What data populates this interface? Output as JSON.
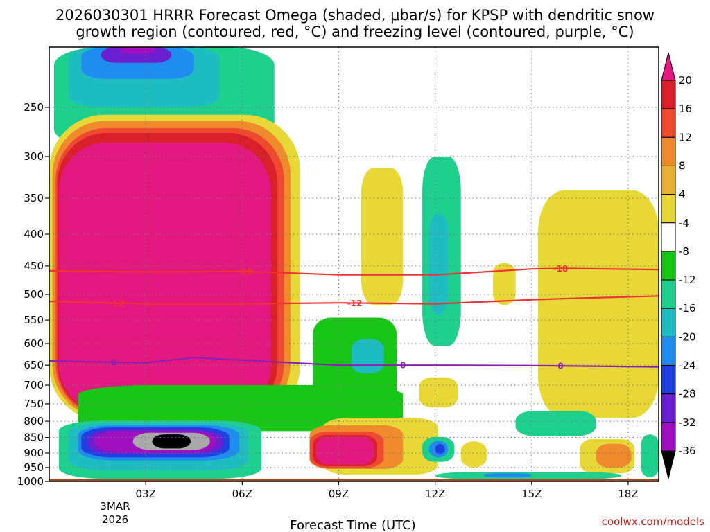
{
  "chart_data": {
    "type": "heatmap",
    "title_line1": "2026030301 HRRR Forecast Omega (shaded, μbar/s) for KPSP with dendritic snow",
    "title_line2": "growth region (contoured, red, °C) and freezing level (contoured, purple, °C)",
    "xlabel": "Forecast Time (UTC)",
    "credit": "coolwx.com/models",
    "date_label": [
      "3MAR",
      "2026"
    ],
    "x_range_hours": [
      0.0,
      18.95
    ],
    "x_ticks": [
      {
        "hour": 3,
        "label": "03Z"
      },
      {
        "hour": 6,
        "label": "06Z"
      },
      {
        "hour": 9,
        "label": "09Z"
      },
      {
        "hour": 12,
        "label": "12Z"
      },
      {
        "hour": 15,
        "label": "15Z"
      },
      {
        "hour": 18,
        "label": "18Z"
      }
    ],
    "y_range_hpa": [
      200,
      1000
    ],
    "y_ticks": [
      {
        "hpa": 250,
        "label": "250"
      },
      {
        "hpa": 300,
        "label": "300"
      },
      {
        "hpa": 350,
        "label": "350"
      },
      {
        "hpa": 400,
        "label": "400"
      },
      {
        "hpa": 450,
        "label": "450"
      },
      {
        "hpa": 500,
        "label": "500"
      },
      {
        "hpa": 550,
        "label": "550"
      },
      {
        "hpa": 600,
        "label": "600"
      },
      {
        "hpa": 650,
        "label": "650"
      },
      {
        "hpa": 700,
        "label": "700"
      },
      {
        "hpa": 750,
        "label": "750"
      },
      {
        "hpa": 800,
        "label": "800"
      },
      {
        "hpa": 850,
        "label": "850"
      },
      {
        "hpa": 900,
        "label": "900"
      },
      {
        "hpa": 950,
        "label": "950"
      },
      {
        "hpa": 1000,
        "label": "1000"
      }
    ],
    "colorbar": {
      "levels": [
        20,
        16,
        12,
        8,
        4,
        -4,
        -8,
        -12,
        -16,
        -20,
        -24,
        -28,
        -32,
        -36
      ],
      "labels": [
        "20",
        "16",
        "12",
        "8",
        "4",
        "-4",
        "-8",
        "-12",
        "-16",
        "-20",
        "-24",
        "-28",
        "-32",
        "-36"
      ],
      "colors": [
        "#d81f2a",
        "#ef4a30",
        "#ef8a2d",
        "#e8b133",
        "#e7d838",
        "#ffffff",
        "#18c618",
        "#1fcf8d",
        "#1fbcc2",
        "#1f8cf0",
        "#1f3fe0",
        "#6a20d0",
        "#a010c0",
        "#aaaaaa"
      ],
      "top_color": "#e2187f",
      "bottom_color": "#000000"
    },
    "omega_regions": [
      {
        "t0": 0.15,
        "t1": 7.0,
        "p_top": 200,
        "p_bot": 290,
        "value": -8
      },
      {
        "t0": 0.6,
        "t1": 5.3,
        "p_top": 200,
        "p_bot": 250,
        "value": -12
      },
      {
        "t0": 1.0,
        "t1": 4.5,
        "p_top": 200,
        "p_bot": 225,
        "value": -18
      },
      {
        "t0": 1.6,
        "t1": 3.8,
        "p_top": 200,
        "p_bot": 212,
        "value": -24
      },
      {
        "t0": 2.2,
        "t1": 3.3,
        "p_top": 200,
        "p_bot": 205,
        "value": -28
      },
      {
        "t0": 0.0,
        "t1": 7.8,
        "p_top": 257,
        "p_bot": 800,
        "value": 5
      },
      {
        "t0": 0.1,
        "t1": 7.5,
        "p_top": 263,
        "p_bot": 790,
        "value": 9
      },
      {
        "t0": 0.2,
        "t1": 7.3,
        "p_top": 270,
        "p_bot": 785,
        "value": 13
      },
      {
        "t0": 0.25,
        "t1": 7.1,
        "p_top": 275,
        "p_bot": 780,
        "value": 17
      },
      {
        "t0": 0.3,
        "t1": 6.9,
        "p_top": 285,
        "p_bot": 775,
        "value": 22
      },
      {
        "t0": 0.9,
        "t1": 11.0,
        "p_top": 700,
        "p_bot": 830,
        "value": -6
      },
      {
        "t0": 8.2,
        "t1": 10.8,
        "p_top": 545,
        "p_bot": 760,
        "value": -7
      },
      {
        "t0": 9.4,
        "t1": 10.4,
        "p_top": 590,
        "p_bot": 670,
        "value": -12
      },
      {
        "t0": 0.3,
        "t1": 6.6,
        "p_top": 798,
        "p_bot": 990,
        "value": -8
      },
      {
        "t0": 0.6,
        "t1": 6.2,
        "p_top": 805,
        "p_bot": 960,
        "value": -12
      },
      {
        "t0": 0.9,
        "t1": 5.9,
        "p_top": 812,
        "p_bot": 925,
        "value": -16
      },
      {
        "t0": 1.0,
        "t1": 5.6,
        "p_top": 818,
        "p_bot": 915,
        "value": -20
      },
      {
        "t0": 1.2,
        "t1": 5.4,
        "p_top": 825,
        "p_bot": 905,
        "value": -24
      },
      {
        "t0": 1.4,
        "t1": 5.2,
        "p_top": 830,
        "p_bot": 898,
        "value": -28
      },
      {
        "t0": 2.6,
        "t1": 5.0,
        "p_top": 835,
        "p_bot": 890,
        "value": -33
      },
      {
        "t0": 3.2,
        "t1": 4.4,
        "p_top": 840,
        "p_bot": 885,
        "value": -40
      },
      {
        "t0": 8.5,
        "t1": 12.1,
        "p_top": 790,
        "p_bot": 975,
        "value": 5
      },
      {
        "t0": 8.1,
        "t1": 11.0,
        "p_top": 812,
        "p_bot": 955,
        "value": 9
      },
      {
        "t0": 8.1,
        "t1": 10.4,
        "p_top": 832,
        "p_bot": 950,
        "value": 13
      },
      {
        "t0": 8.2,
        "t1": 10.2,
        "p_top": 842,
        "p_bot": 945,
        "value": 17
      },
      {
        "t0": 8.3,
        "t1": 10.1,
        "p_top": 848,
        "p_bot": 940,
        "value": 22
      },
      {
        "t0": 9.7,
        "t1": 11.0,
        "p_top": 313,
        "p_bot": 520,
        "value": 5
      },
      {
        "t0": 11.6,
        "t1": 12.8,
        "p_top": 300,
        "p_bot": 605,
        "value": -8
      },
      {
        "t0": 11.8,
        "t1": 12.4,
        "p_top": 370,
        "p_bot": 540,
        "value": -12
      },
      {
        "t0": 11.5,
        "t1": 12.7,
        "p_top": 680,
        "p_bot": 760,
        "value": 5
      },
      {
        "t0": 11.6,
        "t1": 12.6,
        "p_top": 848,
        "p_bot": 930,
        "value": -8
      },
      {
        "t0": 11.8,
        "t1": 12.4,
        "p_top": 860,
        "p_bot": 915,
        "value": -16
      },
      {
        "t0": 12.0,
        "t1": 12.3,
        "p_top": 870,
        "p_bot": 905,
        "value": -20
      },
      {
        "t0": 12.8,
        "t1": 13.6,
        "p_top": 862,
        "p_bot": 950,
        "value": 5
      },
      {
        "t0": 13.8,
        "t1": 14.5,
        "p_top": 445,
        "p_bot": 520,
        "value": 5
      },
      {
        "t0": 15.2,
        "t1": 18.95,
        "p_top": 340,
        "p_bot": 790,
        "value": 5
      },
      {
        "t0": 14.5,
        "t1": 17.0,
        "p_top": 770,
        "p_bot": 845,
        "value": -8
      },
      {
        "t0": 16.5,
        "t1": 18.2,
        "p_top": 855,
        "p_bot": 970,
        "value": 5
      },
      {
        "t0": 17.0,
        "t1": 18.1,
        "p_top": 870,
        "p_bot": 950,
        "value": 9
      },
      {
        "t0": 18.4,
        "t1": 18.95,
        "p_top": 840,
        "p_bot": 985,
        "value": -8
      },
      {
        "t0": 12.0,
        "t1": 17.8,
        "p_top": 965,
        "p_bot": 992,
        "value": -8
      },
      {
        "t0": 13.5,
        "t1": 15.0,
        "p_top": 970,
        "p_bot": 985,
        "value": -16
      }
    ],
    "contours": [
      {
        "name": "dgz-minus18",
        "label": "-18",
        "color": "#ee3333",
        "kind": "dgz",
        "points": [
          [
            0,
            458
          ],
          [
            3,
            460
          ],
          [
            6,
            459
          ],
          [
            9,
            465
          ],
          [
            12,
            465
          ],
          [
            15,
            455
          ],
          [
            16,
            454
          ],
          [
            18.95,
            456
          ]
        ],
        "label_hours": [
          6.1,
          15.9
        ]
      },
      {
        "name": "dgz-minus12",
        "label": "-12",
        "color": "#ee3333",
        "kind": "dgz",
        "points": [
          [
            0,
            513
          ],
          [
            3,
            518
          ],
          [
            6,
            518
          ],
          [
            9,
            516
          ],
          [
            12,
            518
          ],
          [
            15,
            510
          ],
          [
            16,
            508
          ],
          [
            18.95,
            503
          ]
        ],
        "label_hours": [
          2.1,
          9.5
        ]
      },
      {
        "name": "freezing-level-0",
        "label": "0",
        "color": "#8a1fb8",
        "kind": "freezing",
        "points": [
          [
            0,
            640
          ],
          [
            3,
            644
          ],
          [
            4.5,
            632
          ],
          [
            6,
            638
          ],
          [
            9,
            650
          ],
          [
            12,
            650
          ],
          [
            15,
            651
          ],
          [
            18.95,
            654
          ]
        ],
        "label_hours": [
          2.0,
          11.0,
          15.9
        ]
      }
    ],
    "ground": {
      "p_top": 990,
      "color": "#9c4a1f"
    }
  }
}
